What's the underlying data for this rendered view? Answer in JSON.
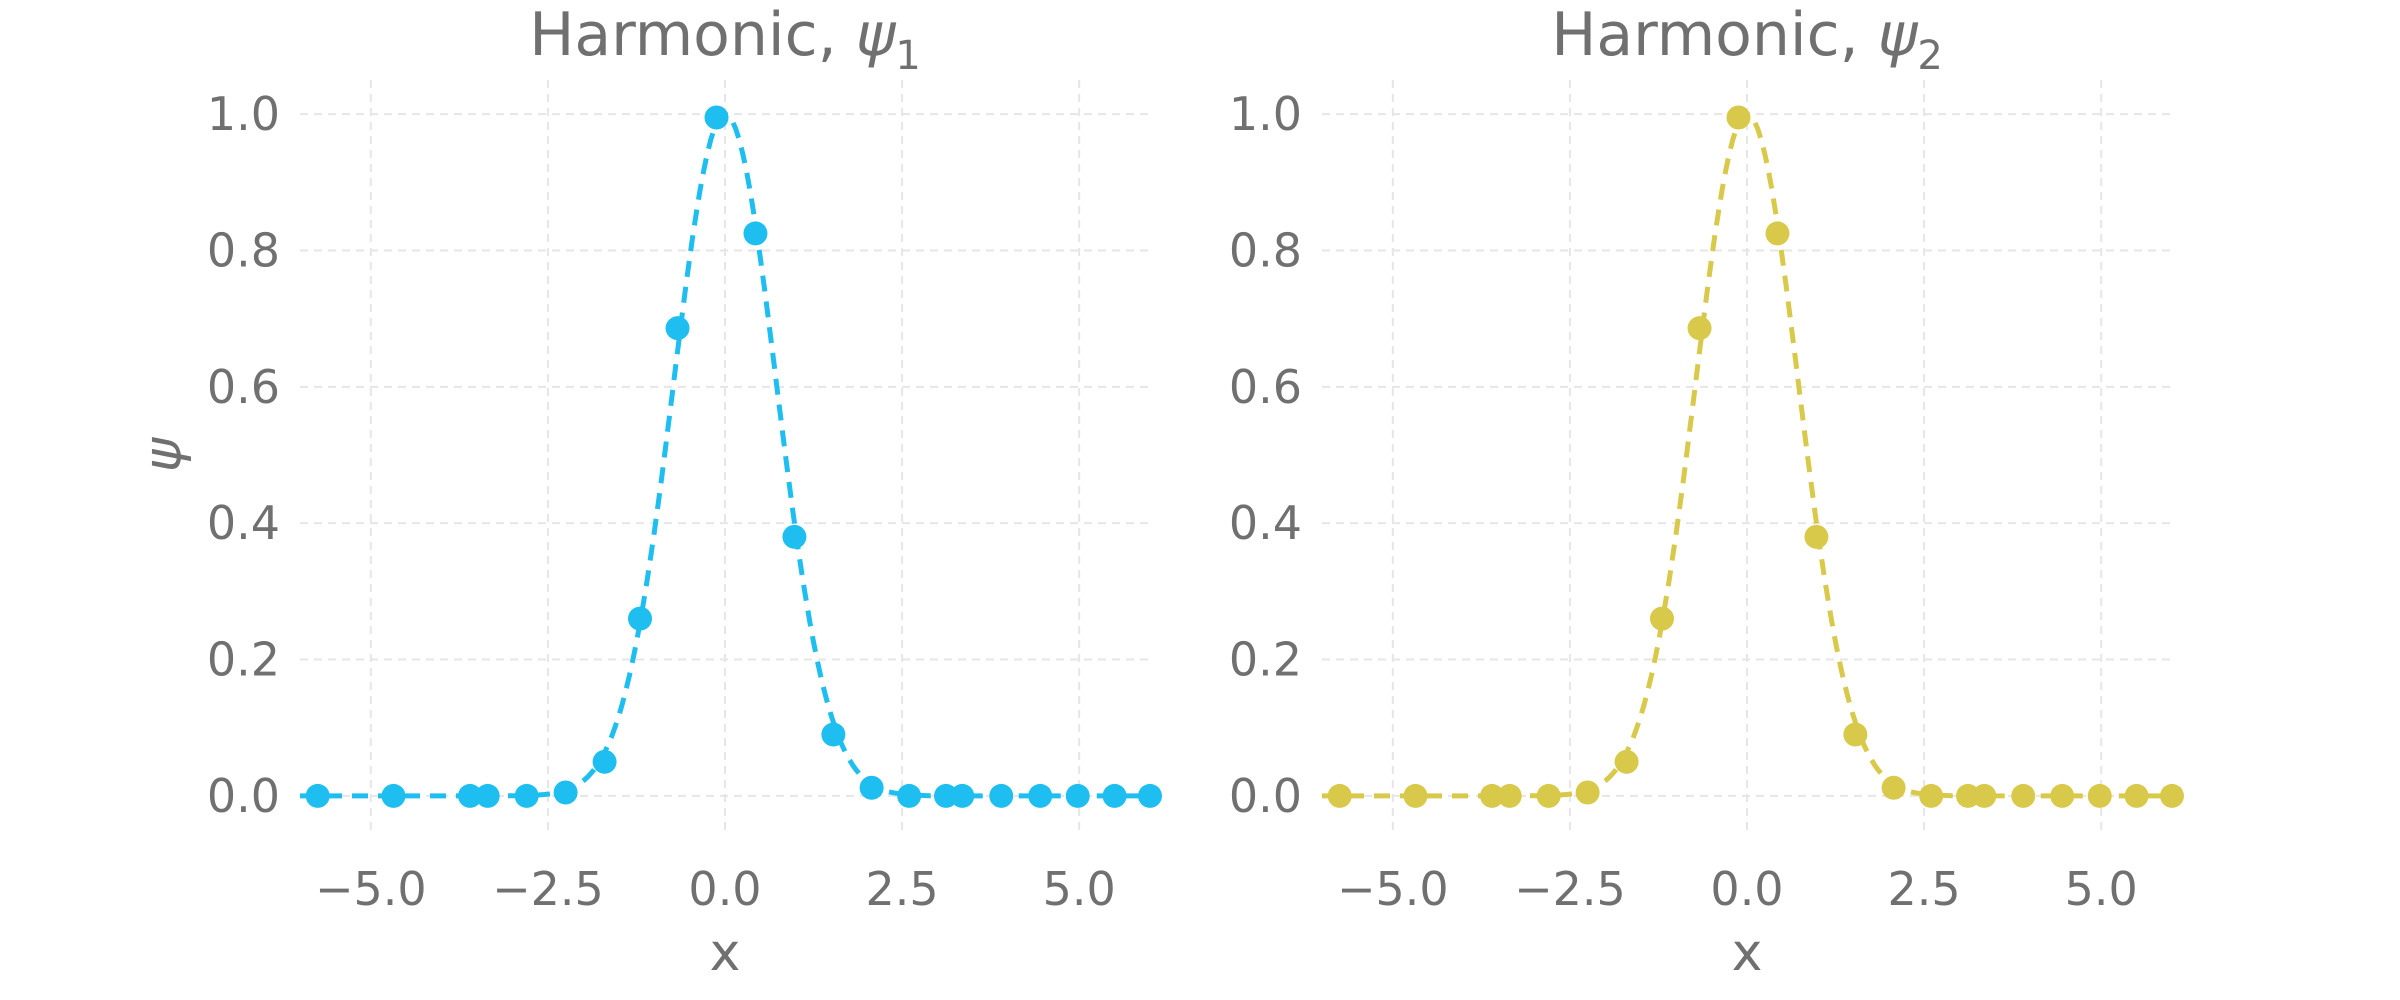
{
  "chart_data": [
    {
      "type": "line",
      "title": "Harmonic, ",
      "title_symbol": "ψ",
      "title_subscript": "1",
      "xlabel": "x",
      "ylabel": "ψ",
      "xlim": [
        -6,
        6
      ],
      "ylim": [
        -0.05,
        1.05
      ],
      "xticks": [
        -5.0,
        -2.5,
        0.0,
        2.5,
        5.0
      ],
      "xtick_labels": [
        "−5.0",
        "−2.5",
        "0.0",
        "2.5",
        "5.0"
      ],
      "yticks": [
        0.0,
        0.2,
        0.4,
        0.6,
        0.8,
        1.0
      ],
      "ytick_labels": [
        "0.0",
        "0.2",
        "0.4",
        "0.6",
        "0.8",
        "1.0"
      ],
      "grid": true,
      "color": "#1ebff0",
      "line_style": "dashed",
      "series": [
        {
          "x": [
            -5.75,
            -4.68,
            -3.6,
            -3.35,
            -2.8,
            -2.25,
            -1.7,
            -1.2,
            -0.67,
            -0.12,
            0.43,
            0.98,
            1.53,
            2.07,
            2.6,
            3.12,
            3.35,
            3.9,
            4.45,
            4.98,
            5.5,
            6.0
          ],
          "y": [
            0.0,
            0.0,
            0.0,
            0.0,
            0.0,
            0.005,
            0.05,
            0.26,
            0.686,
            0.995,
            0.825,
            0.38,
            0.09,
            0.012,
            0.0,
            0.0,
            0.0,
            0.0,
            0.0,
            0.0,
            0.0,
            0.0
          ]
        }
      ]
    },
    {
      "type": "line",
      "title": "Harmonic, ",
      "title_symbol": "ψ",
      "title_subscript": "2",
      "xlabel": "x",
      "ylabel": "",
      "xlim": [
        -6,
        6
      ],
      "ylim": [
        -0.05,
        1.05
      ],
      "xticks": [
        -5.0,
        -2.5,
        0.0,
        2.5,
        5.0
      ],
      "xtick_labels": [
        "−5.0",
        "−2.5",
        "0.0",
        "2.5",
        "5.0"
      ],
      "yticks": [
        0.0,
        0.2,
        0.4,
        0.6,
        0.8,
        1.0
      ],
      "ytick_labels": [
        "0.0",
        "0.2",
        "0.4",
        "0.6",
        "0.8",
        "1.0"
      ],
      "grid": true,
      "color": "#d9c94a",
      "line_style": "dashed",
      "series": [
        {
          "x": [
            -5.75,
            -4.68,
            -3.6,
            -3.35,
            -2.8,
            -2.25,
            -1.7,
            -1.2,
            -0.67,
            -0.12,
            0.43,
            0.98,
            1.53,
            2.07,
            2.6,
            3.12,
            3.35,
            3.9,
            4.45,
            4.98,
            5.5,
            6.0
          ],
          "y": [
            0.0,
            0.0,
            0.0,
            0.0,
            0.0,
            0.005,
            0.05,
            0.26,
            0.686,
            0.995,
            0.825,
            0.38,
            0.09,
            0.012,
            0.0,
            0.0,
            0.0,
            0.0,
            0.0,
            0.0,
            0.0,
            0.0
          ]
        }
      ]
    }
  ]
}
